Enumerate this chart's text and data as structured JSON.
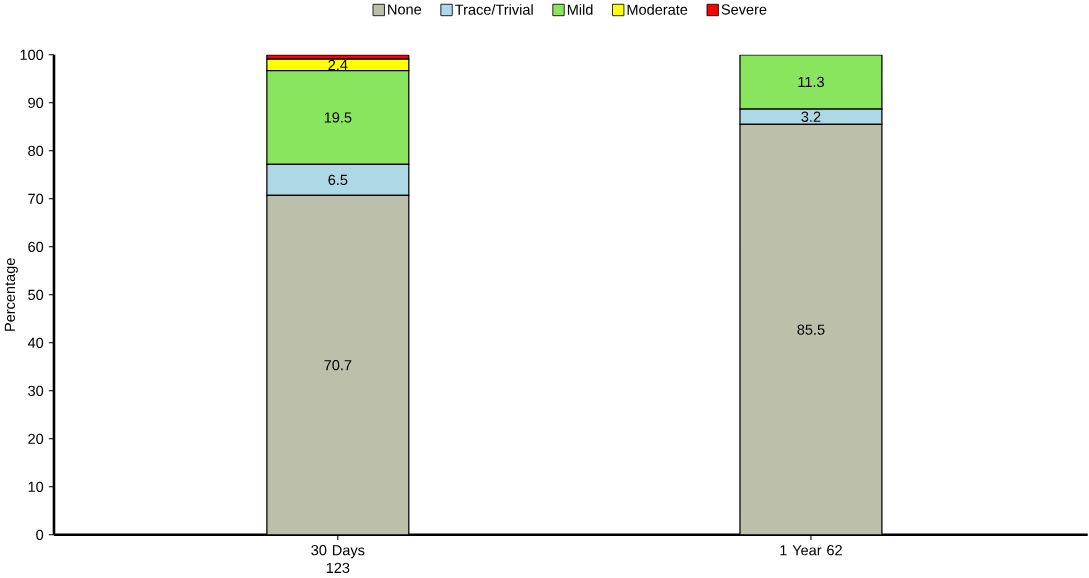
{
  "chart_data": {
    "type": "bar",
    "stacked": true,
    "ylabel": "Percentage",
    "categories": [
      "30 Days 123",
      "1 Year 62"
    ],
    "series": [
      {
        "name": "None",
        "color": "#bcbfaa",
        "values": [
          70.7,
          85.5
        ],
        "value_labels": [
          "70.7",
          "85.5"
        ]
      },
      {
        "name": "Trace/Trivial",
        "color": "#add8e6",
        "values": [
          6.5,
          3.2
        ],
        "value_labels": [
          "6.5",
          "3.2"
        ]
      },
      {
        "name": "Mild",
        "color": "#89e55e",
        "values": [
          19.5,
          11.3
        ],
        "value_labels": [
          "19.5",
          "11.3"
        ]
      },
      {
        "name": "Moderate",
        "color": "#ffff00",
        "values": [
          2.4,
          0
        ],
        "value_labels": [
          "2.4",
          null
        ]
      },
      {
        "name": "Severe",
        "color": "#ff0000",
        "values": [
          0.9,
          0
        ],
        "value_labels": [
          null,
          null
        ]
      }
    ],
    "ylim": [
      0,
      100
    ],
    "yticks": [
      0,
      10,
      20,
      30,
      40,
      50,
      60,
      70,
      80,
      90,
      100
    ],
    "legend": "top",
    "grid": false
  }
}
